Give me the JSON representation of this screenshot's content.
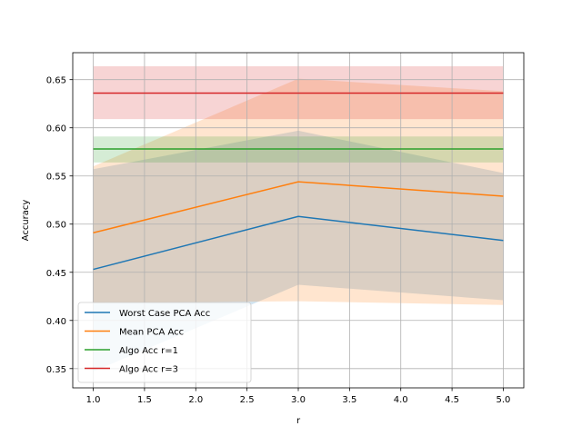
{
  "chart_data": {
    "type": "line",
    "xlabel": "r",
    "ylabel": "Accuracy",
    "xlim": [
      0.8,
      5.2
    ],
    "ylim": [
      0.33,
      0.678
    ],
    "xticks": [
      1.0,
      1.5,
      2.0,
      2.5,
      3.0,
      3.5,
      4.0,
      4.5,
      5.0
    ],
    "xtick_labels": [
      "1.0",
      "1.5",
      "2.0",
      "2.5",
      "3.0",
      "3.5",
      "4.0",
      "4.5",
      "5.0"
    ],
    "yticks": [
      0.35,
      0.4,
      0.45,
      0.5,
      0.55,
      0.6,
      0.65
    ],
    "ytick_labels": [
      "0.35",
      "0.40",
      "0.45",
      "0.50",
      "0.55",
      "0.60",
      "0.65"
    ],
    "grid": true,
    "legend_position": "lower-left",
    "series": [
      {
        "name": "Worst Case PCA Acc",
        "color": "#1f77b4",
        "x": [
          1,
          3,
          5
        ],
        "y": [
          0.453,
          0.508,
          0.483
        ],
        "band_lower": [
          0.347,
          0.437,
          0.421
        ],
        "band_upper": [
          0.557,
          0.597,
          0.553
        ]
      },
      {
        "name": "Mean PCA Acc",
        "color": "#ff7f0e",
        "x": [
          1,
          3,
          5
        ],
        "y": [
          0.491,
          0.544,
          0.529
        ],
        "band_lower": [
          0.418,
          0.42,
          0.416
        ],
        "band_upper": [
          0.56,
          0.651,
          0.638
        ]
      },
      {
        "name": "Algo Acc r=1",
        "color": "#2ca02c",
        "x": [
          1,
          5
        ],
        "y": [
          0.578,
          0.578
        ],
        "band_lower": [
          0.564,
          0.564
        ],
        "band_upper": [
          0.591,
          0.591
        ]
      },
      {
        "name": "Algo Acc r=3",
        "color": "#d62728",
        "x": [
          1,
          5
        ],
        "y": [
          0.636,
          0.636
        ],
        "band_lower": [
          0.609,
          0.609
        ],
        "band_upper": [
          0.664,
          0.664
        ]
      }
    ]
  }
}
